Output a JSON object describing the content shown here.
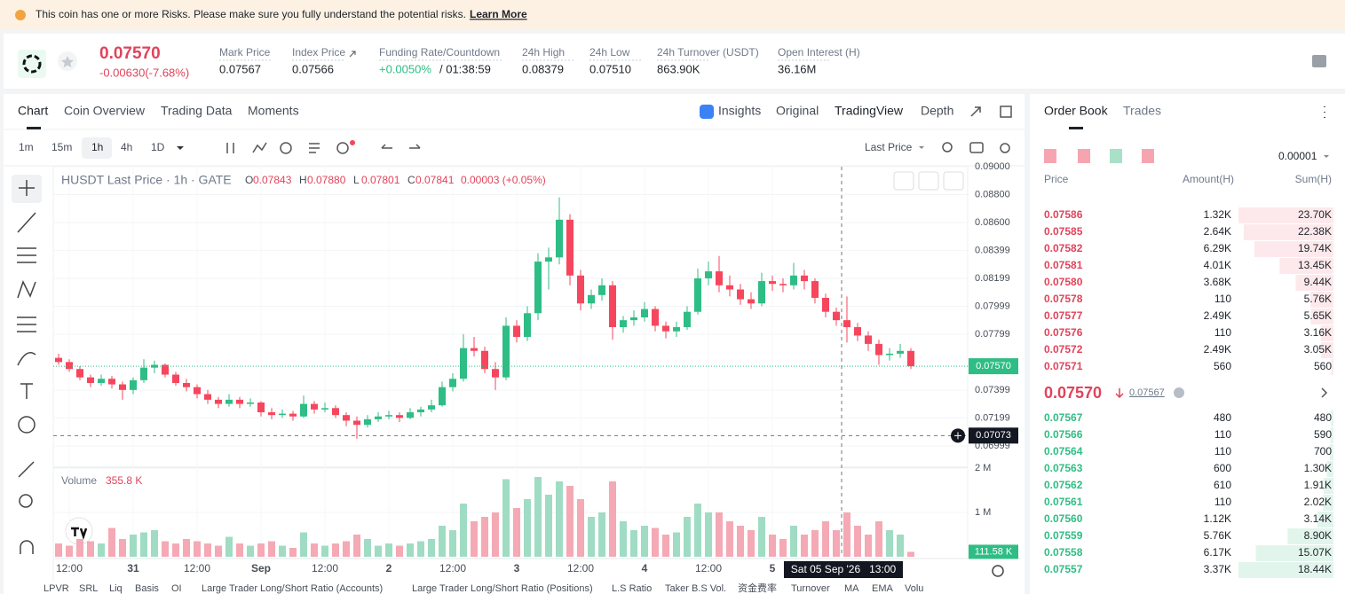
{
  "banner": {
    "text": "This coin has one or more Risks. Please make sure you fully understand the potential risks.",
    "link": "Learn More"
  },
  "header": {
    "price": "0.07570",
    "change": "-0.00630(-7.68%)",
    "stats": [
      {
        "label": "Mark Price",
        "value": "0.07567"
      },
      {
        "label": "Index Price",
        "value": "0.07566"
      },
      {
        "label": "Funding Rate/Countdown",
        "value": "+0.0050%",
        "extra": "/ 01:38:59"
      },
      {
        "label": "24h High",
        "value": "0.08379"
      },
      {
        "label": "24h Low",
        "value": "0.07510"
      },
      {
        "label": "24h Turnover (USDT)",
        "value": "863.90K"
      },
      {
        "label": "Open Interest (H)",
        "value": "36.16M"
      }
    ]
  },
  "tabs": [
    "Chart",
    "Coin Overview",
    "Trading Data",
    "Moments"
  ],
  "views": [
    "Insights",
    "Original",
    "TradingView",
    "Depth"
  ],
  "intervals": [
    "1m",
    "15m",
    "1h",
    "4h",
    "1D"
  ],
  "price_type": "Last Price",
  "indicators": [
    "LPVR",
    "SRL",
    "Liq",
    "Basis",
    "OI",
    "Large Trader Long/Short Ratio (Accounts)",
    "Large Trader Long/Short Ratio (Positions)",
    "L.S Ratio",
    "Taker B.S Vol.",
    "资金费率",
    "Turnover",
    "MA",
    "EMA",
    "Volu"
  ],
  "chart_data": {
    "type": "candlestick",
    "title": "HUSDT Last Price · 1h · GATE",
    "ohlc_legend": [
      {
        "key": "O",
        "value": "0.07843"
      },
      {
        "key": "H",
        "value": "0.07880"
      },
      {
        "key": "L",
        "value": "0.07801"
      },
      {
        "key": "C",
        "value": "0.07841"
      }
    ],
    "ohlc_change": "0.00003 (+0.05%)",
    "ylim": [
      0.06859,
      0.09
    ],
    "yticks": [
      {
        "value": 0.09,
        "label": "0.09000"
      },
      {
        "value": 0.088,
        "label": "0.08800"
      },
      {
        "value": 0.086,
        "label": "0.08600"
      },
      {
        "value": 0.08399,
        "label": "0.08399"
      },
      {
        "value": 0.08199,
        "label": "0.08199"
      },
      {
        "value": 0.07999,
        "label": "0.07999"
      },
      {
        "value": 0.07799,
        "label": "0.07799"
      },
      {
        "value": 0.07399,
        "label": "0.07399"
      },
      {
        "value": 0.07199,
        "label": "0.07199"
      },
      {
        "value": 0.06999,
        "label": "0.06999"
      }
    ],
    "xlim": [
      0,
      171.67
    ],
    "xticks": [
      {
        "value": 3,
        "label": "12:00"
      },
      {
        "value": 15,
        "label": "31"
      },
      {
        "value": 27,
        "label": "12:00"
      },
      {
        "value": 39,
        "label": "Sep"
      },
      {
        "value": 51,
        "label": "12:00"
      },
      {
        "value": 63,
        "label": "2"
      },
      {
        "value": 75,
        "label": "12:00"
      },
      {
        "value": 87,
        "label": "3"
      },
      {
        "value": 99,
        "label": "12:00"
      },
      {
        "value": 111,
        "label": "4"
      },
      {
        "value": 123,
        "label": "12:00"
      },
      {
        "value": 135,
        "label": "5"
      }
    ],
    "ohlc": [
      [
        0.0763,
        0.0766,
        0.0758,
        0.076
      ],
      [
        0.076,
        0.0762,
        0.0753,
        0.0755
      ],
      [
        0.0755,
        0.0757,
        0.0747,
        0.0749
      ],
      [
        0.0749,
        0.0751,
        0.0742,
        0.0745
      ],
      [
        0.0745,
        0.0751,
        0.0743,
        0.0748
      ],
      [
        0.0748,
        0.075,
        0.0741,
        0.0744
      ],
      [
        0.0744,
        0.0746,
        0.0733,
        0.074
      ],
      [
        0.074,
        0.0749,
        0.0737,
        0.0747
      ],
      [
        0.0747,
        0.0762,
        0.0745,
        0.0756
      ],
      [
        0.0756,
        0.0761,
        0.0752,
        0.0758
      ],
      [
        0.0758,
        0.0759,
        0.0749,
        0.0751
      ],
      [
        0.0751,
        0.0753,
        0.0743,
        0.0745
      ],
      [
        0.0745,
        0.0748,
        0.0739,
        0.0742
      ],
      [
        0.0742,
        0.0744,
        0.0734,
        0.0737
      ],
      [
        0.0737,
        0.074,
        0.073,
        0.0733
      ],
      [
        0.0733,
        0.0735,
        0.0727,
        0.073
      ],
      [
        0.073,
        0.0737,
        0.0728,
        0.0733
      ],
      [
        0.0733,
        0.0735,
        0.0727,
        0.073
      ],
      [
        0.073,
        0.0734,
        0.0728,
        0.0731
      ],
      [
        0.0731,
        0.0732,
        0.0721,
        0.0724
      ],
      [
        0.0724,
        0.0727,
        0.0719,
        0.0722
      ],
      [
        0.0722,
        0.0726,
        0.072,
        0.0723
      ],
      [
        0.0723,
        0.0725,
        0.0718,
        0.0721
      ],
      [
        0.0721,
        0.0736,
        0.072,
        0.073
      ],
      [
        0.073,
        0.0732,
        0.0723,
        0.0726
      ],
      [
        0.0726,
        0.0731,
        0.0724,
        0.0727
      ],
      [
        0.0727,
        0.0729,
        0.072,
        0.0722
      ],
      [
        0.0722,
        0.0724,
        0.0714,
        0.0718
      ],
      [
        0.0718,
        0.0721,
        0.0705,
        0.0715
      ],
      [
        0.0715,
        0.0722,
        0.0713,
        0.0719
      ],
      [
        0.0719,
        0.0724,
        0.0717,
        0.0721
      ],
      [
        0.0721,
        0.0725,
        0.0719,
        0.0722
      ],
      [
        0.0722,
        0.0724,
        0.0717,
        0.072
      ],
      [
        0.072,
        0.0727,
        0.0719,
        0.0724
      ],
      [
        0.0724,
        0.0728,
        0.0721,
        0.0726
      ],
      [
        0.0726,
        0.0733,
        0.0724,
        0.0729
      ],
      [
        0.0729,
        0.0746,
        0.0728,
        0.0742
      ],
      [
        0.0742,
        0.0752,
        0.0739,
        0.0748
      ],
      [
        0.0748,
        0.078,
        0.0746,
        0.077
      ],
      [
        0.077,
        0.0778,
        0.0764,
        0.0768
      ],
      [
        0.0768,
        0.0771,
        0.0752,
        0.0755
      ],
      [
        0.0755,
        0.076,
        0.074,
        0.0749
      ],
      [
        0.0749,
        0.0792,
        0.0747,
        0.0786
      ],
      [
        0.0786,
        0.079,
        0.0774,
        0.0778
      ],
      [
        0.0778,
        0.08,
        0.0775,
        0.0795
      ],
      [
        0.0795,
        0.0838,
        0.079,
        0.0832
      ],
      [
        0.0832,
        0.0842,
        0.0812,
        0.0835
      ],
      [
        0.0835,
        0.0878,
        0.083,
        0.0862
      ],
      [
        0.0862,
        0.0866,
        0.0815,
        0.0822
      ],
      [
        0.0822,
        0.0826,
        0.0797,
        0.0802
      ],
      [
        0.0802,
        0.0812,
        0.0798,
        0.0808
      ],
      [
        0.0808,
        0.082,
        0.0804,
        0.0815
      ],
      [
        0.0815,
        0.0818,
        0.0776,
        0.0785
      ],
      [
        0.0785,
        0.0793,
        0.0781,
        0.079
      ],
      [
        0.079,
        0.0797,
        0.0786,
        0.0792
      ],
      [
        0.0792,
        0.0803,
        0.0789,
        0.0798
      ],
      [
        0.0798,
        0.08,
        0.0782,
        0.0786
      ],
      [
        0.0786,
        0.0789,
        0.0777,
        0.0782
      ],
      [
        0.0782,
        0.0789,
        0.0778,
        0.0785
      ],
      [
        0.0785,
        0.08,
        0.0783,
        0.0796
      ],
      [
        0.0796,
        0.0827,
        0.0794,
        0.082
      ],
      [
        0.082,
        0.0832,
        0.0815,
        0.0825
      ],
      [
        0.0825,
        0.0836,
        0.081,
        0.0815
      ],
      [
        0.0815,
        0.0822,
        0.0807,
        0.0812
      ],
      [
        0.0812,
        0.0816,
        0.0801,
        0.0805
      ],
      [
        0.0805,
        0.081,
        0.0798,
        0.0802
      ],
      [
        0.0802,
        0.0824,
        0.08,
        0.0818
      ],
      [
        0.0818,
        0.0822,
        0.0811,
        0.0816
      ],
      [
        0.0816,
        0.082,
        0.081,
        0.0815
      ],
      [
        0.0815,
        0.0831,
        0.0812,
        0.0822
      ],
      [
        0.0822,
        0.0826,
        0.0812,
        0.0818
      ],
      [
        0.0818,
        0.082,
        0.0802,
        0.0806
      ],
      [
        0.0806,
        0.0809,
        0.0792,
        0.0796
      ],
      [
        0.0796,
        0.0799,
        0.0786,
        0.079
      ],
      [
        0.079,
        0.0807,
        0.0774,
        0.0785
      ],
      [
        0.0785,
        0.0788,
        0.0775,
        0.0779
      ],
      [
        0.0779,
        0.0782,
        0.0768,
        0.0773
      ],
      [
        0.0773,
        0.0776,
        0.0758,
        0.0765
      ],
      [
        0.0765,
        0.077,
        0.0761,
        0.0766
      ],
      [
        0.0766,
        0.0773,
        0.0763,
        0.0768
      ],
      [
        0.0768,
        0.077,
        0.0755,
        0.0757
      ]
    ],
    "up_color": "#2ebd85",
    "down_color": "#f6465d",
    "volume_title": "Volume",
    "volume_value": "355.8 K",
    "volumes": [
      300000,
      250000,
      400000,
      350000,
      300000,
      650000,
      400000,
      500000,
      550000,
      600000,
      350000,
      300000,
      400000,
      350000,
      300000,
      250000,
      450000,
      300000,
      250000,
      300000,
      350000,
      250000,
      200000,
      550000,
      300000,
      250000,
      300000,
      350000,
      500000,
      400000,
      250000,
      300000,
      250000,
      300000,
      350000,
      400000,
      700000,
      600000,
      1200000,
      800000,
      900000,
      1000000,
      1750000,
      1100000,
      1300000,
      1800000,
      1400000,
      1700000,
      1600000,
      1300000,
      900000,
      1000000,
      1700000,
      800000,
      600000,
      700000,
      650000,
      500000,
      550000,
      900000,
      1200000,
      1000000,
      1000000,
      800000,
      700000,
      600000,
      900000,
      500000,
      400000,
      700000,
      500000,
      600000,
      800000,
      600000,
      1000000,
      700000,
      500000,
      800000,
      600000,
      500000,
      111580
    ],
    "volume_ylim": [
      0,
      2000000
    ],
    "volume_ticks": [
      {
        "value": 1000000,
        "label": "1 M"
      },
      {
        "value": 2000000,
        "label": "2 M"
      }
    ],
    "volume_tag": "111.58 K",
    "last_price_label": "0.07570",
    "crosshair": {
      "price": 0.07073,
      "x": 148,
      "time_label": "Sat 05 Sep '26   13:00"
    }
  },
  "order_book": {
    "tabs": [
      "Order Book",
      "Trades"
    ],
    "precision": "0.00001",
    "headers": [
      "Price",
      "Amount(H)",
      "Sum(H)"
    ],
    "asks": [
      [
        "0.07586",
        "1.32K",
        "23.70K"
      ],
      [
        "0.07585",
        "2.64K",
        "22.38K"
      ],
      [
        "0.07582",
        "6.29K",
        "19.74K"
      ],
      [
        "0.07581",
        "4.01K",
        "13.45K"
      ],
      [
        "0.07580",
        "3.68K",
        "9.44K"
      ],
      [
        "0.07578",
        "110",
        "5.76K"
      ],
      [
        "0.07577",
        "2.49K",
        "5.65K"
      ],
      [
        "0.07576",
        "110",
        "3.16K"
      ],
      [
        "0.07572",
        "2.49K",
        "3.05K"
      ],
      [
        "0.07571",
        "560",
        "560"
      ]
    ],
    "ask_sums": [
      23700,
      22380,
      19740,
      13450,
      9440,
      5760,
      5650,
      3160,
      3050,
      560
    ],
    "mid_price": "0.07570",
    "mark_price": "0.07567",
    "bids": [
      [
        "0.07567",
        "480",
        "480"
      ],
      [
        "0.07566",
        "110",
        "590"
      ],
      [
        "0.07564",
        "110",
        "700"
      ],
      [
        "0.07563",
        "600",
        "1.30K"
      ],
      [
        "0.07562",
        "610",
        "1.91K"
      ],
      [
        "0.07561",
        "110",
        "2.02K"
      ],
      [
        "0.07560",
        "1.12K",
        "3.14K"
      ],
      [
        "0.07559",
        "5.76K",
        "8.90K"
      ],
      [
        "0.07558",
        "6.17K",
        "15.07K"
      ],
      [
        "0.07557",
        "3.37K",
        "18.44K"
      ]
    ],
    "bid_sums": [
      480,
      590,
      700,
      1300,
      1910,
      2020,
      3140,
      8900,
      15070,
      18440
    ]
  }
}
